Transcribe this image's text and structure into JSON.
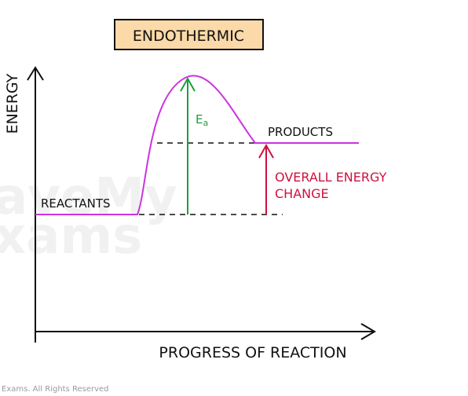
{
  "title": "ENDOTHERMIC",
  "axes": {
    "y_label": "ENERGY",
    "x_label": "PROGRESS OF REACTION"
  },
  "labels": {
    "reactants": "REACTANTS",
    "products": "PRODUCTS",
    "activation_energy_main": "E",
    "activation_energy_sub": "a",
    "overall_line1": "OVERALL ENERGY",
    "overall_line2": "CHANGE"
  },
  "watermark": {
    "line1": "aveMy",
    "line2": "xams"
  },
  "footer": "Exams. All Rights Reserved",
  "colors": {
    "curve": "#cc33e0",
    "activation_arrow": "#1e9e3e",
    "overall_arrow": "#d0103f",
    "title_box_fill": "#fbd9a8",
    "axis": "#111111"
  }
}
